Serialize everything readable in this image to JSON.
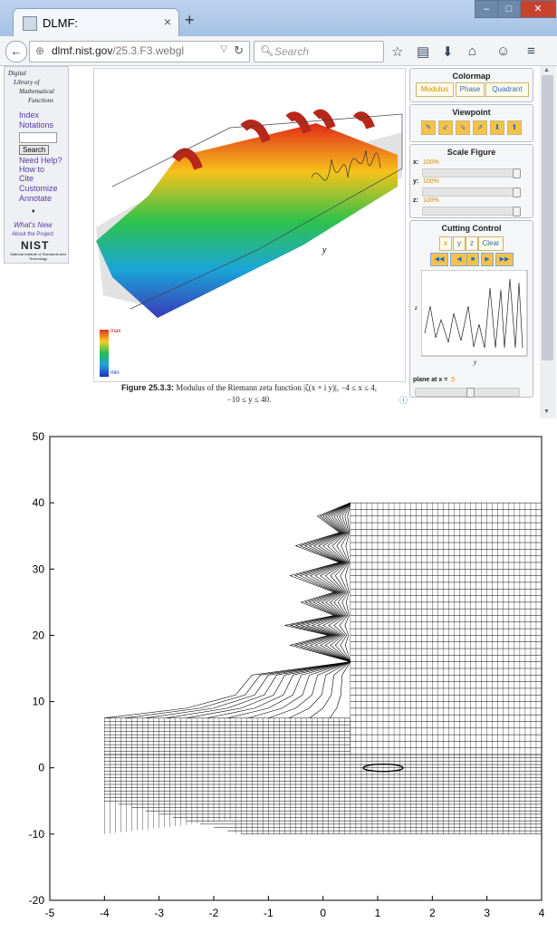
{
  "browser": {
    "tab_title": "DLMF:",
    "new_tab": "+",
    "close_tab": "×",
    "window_buttons": [
      "–",
      "□",
      "✕"
    ],
    "url_domain": "dlmf.nist.gov",
    "url_path": "/25.3.F3.webgl",
    "search_placeholder": "Search"
  },
  "sidebar": {
    "logo_lines": [
      "Digital",
      "Library of",
      "Mathematical",
      "Functions"
    ],
    "links": [
      "Index",
      "Notations"
    ],
    "search_button": "Search",
    "links2": [
      "Need Help?",
      "How to",
      "Cite",
      "Customize",
      "Annotate"
    ],
    "diamond": "♦",
    "whats_new": "What's New",
    "about": "About the Project",
    "nist": "NIST",
    "nist_sub": "National Institute of Standards and Technology"
  },
  "viewer": {
    "legend_max": "max",
    "legend_min": "min",
    "axis_y": "y",
    "caption_fig": "Figure 25.3.3:",
    "caption_text1": "Modulus of the Riemann zeta function |ζ(x + i y)|, −4 ≤ x ≤ 4,",
    "caption_text2": "−10 ≤ y ≤ 40."
  },
  "panels": {
    "colormap": {
      "title": "Colormap",
      "buttons": [
        "Modulus",
        "Phase",
        "Quadrant"
      ]
    },
    "viewpoint": {
      "title": "Viewpoint",
      "buttons": [
        "✎",
        "⇙",
        "⇘",
        "⇗",
        "⬇",
        "⬆"
      ]
    },
    "scale": {
      "title": "Scale Figure",
      "rows": [
        {
          "label": "x:",
          "value": "100%"
        },
        {
          "label": "y:",
          "value": "100%"
        },
        {
          "label": "z:",
          "value": "100%"
        }
      ]
    },
    "cutting": {
      "title": "Cutting Control",
      "axis_buttons": [
        "x",
        "y",
        "z",
        "Clear"
      ],
      "controls": [
        "◀◀",
        "◀",
        "■",
        "▶",
        "▶▶"
      ],
      "inset_z": "z",
      "inset_y": "y",
      "plane_label": "plane at x =",
      "plane_value": ".5"
    }
  },
  "chart_data": {
    "type": "line",
    "title": "",
    "xlabel": "",
    "ylabel": "",
    "xlim": [
      -5,
      4
    ],
    "ylim": [
      -20,
      50
    ],
    "xticks": [
      -5,
      -4,
      -3,
      -2,
      -1,
      0,
      1,
      2,
      3,
      4
    ],
    "yticks": [
      -20,
      -10,
      0,
      10,
      20,
      30,
      40,
      50
    ],
    "grid": false,
    "description_regions": [
      {
        "name": "lower-mesh",
        "x": [
          -4,
          4
        ],
        "y": [
          -10,
          2
        ]
      },
      {
        "name": "upper-right-mesh",
        "x": [
          0.5,
          4
        ],
        "y": [
          2,
          40
        ]
      },
      {
        "name": "left-mesh",
        "x": [
          -4,
          0.5
        ],
        "y": [
          2,
          7.5
        ]
      }
    ]
  }
}
